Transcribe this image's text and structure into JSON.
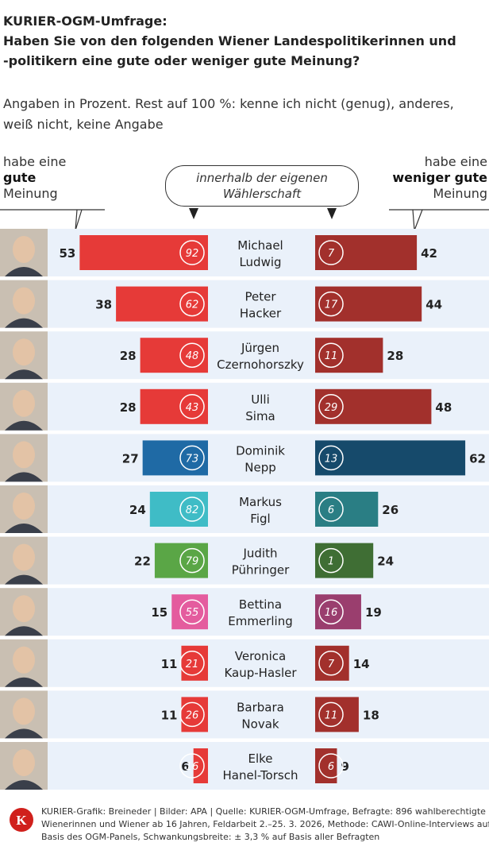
{
  "header": {
    "title_lines": [
      "KURIER-OGM-Umfrage:",
      "Haben Sie von den folgenden Wiener Landespolitikerinnen und",
      "-politikern eine gute oder weniger gute Meinung?"
    ],
    "subtitle_lines": [
      "Angaben in Prozent. Rest auf 100 %: kenne ich nicht (genug), anderes,",
      "weiß nicht, keine Angabe"
    ]
  },
  "legend": {
    "left": {
      "line1": "habe eine",
      "line2": "gute",
      "line3": "Meinung"
    },
    "right": {
      "line1": "habe eine",
      "line2": "weniger gute",
      "line3": "Meinung"
    },
    "bubble": {
      "line1": "innerhalb der eigenen",
      "line2": "Wählerschaft"
    }
  },
  "chart_data": {
    "type": "bar",
    "subtype": "diverging-horizontal",
    "title": "Haben Sie von den folgenden Wiener Landespolitikerinnen und -politikern eine gute oder weniger gute Meinung?",
    "unit": "%",
    "series": [
      {
        "name": "habe eine gute Meinung",
        "values": [
          53,
          38,
          28,
          28,
          27,
          24,
          22,
          15,
          11,
          11,
          6
        ]
      },
      {
        "name": "gute Meinung innerhalb der eigenen Wählerschaft",
        "values": [
          92,
          62,
          48,
          43,
          73,
          82,
          79,
          55,
          21,
          26,
          16
        ]
      },
      {
        "name": "innerhalb der eigenen Wählerschaft (weniger gute)",
        "values": [
          7,
          17,
          11,
          29,
          13,
          6,
          1,
          16,
          7,
          11,
          6
        ]
      },
      {
        "name": "habe eine weniger gute Meinung",
        "values": [
          42,
          44,
          28,
          48,
          62,
          26,
          24,
          19,
          14,
          18,
          9
        ]
      }
    ],
    "rows": [
      {
        "first": "Michael",
        "last": "Ludwig",
        "good": 53,
        "good_own": 92,
        "bad_own": 7,
        "bad": 42,
        "color_good": "#e63a38",
        "color_bad": "#a2302c"
      },
      {
        "first": "Peter",
        "last": "Hacker",
        "good": 38,
        "good_own": 62,
        "bad_own": 17,
        "bad": 44,
        "color_good": "#e63a38",
        "color_bad": "#a2302c"
      },
      {
        "first": "Jürgen",
        "last": "Czernohorszky",
        "good": 28,
        "good_own": 48,
        "bad_own": 11,
        "bad": 28,
        "color_good": "#e63a38",
        "color_bad": "#a2302c"
      },
      {
        "first": "Ulli",
        "last": "Sima",
        "good": 28,
        "good_own": 43,
        "bad_own": 29,
        "bad": 48,
        "color_good": "#e63a38",
        "color_bad": "#a2302c"
      },
      {
        "first": "Dominik",
        "last": "Nepp",
        "good": 27,
        "good_own": 73,
        "bad_own": 13,
        "bad": 62,
        "color_good": "#1f6aa5",
        "color_bad": "#164a6b"
      },
      {
        "first": "Markus",
        "last": "Figl",
        "good": 24,
        "good_own": 82,
        "bad_own": 6,
        "bad": 26,
        "color_good": "#3fbcc6",
        "color_bad": "#2a7e84"
      },
      {
        "first": "Judith",
        "last": "Pühringer",
        "good": 22,
        "good_own": 79,
        "bad_own": 1,
        "bad": 24,
        "color_good": "#5aa646",
        "color_bad": "#3f6e34"
      },
      {
        "first": "Bettina",
        "last": "Emmerling",
        "good": 15,
        "good_own": 55,
        "bad_own": 16,
        "bad": 19,
        "color_good": "#e45c9e",
        "color_bad": "#9a3e6e"
      },
      {
        "first": "Veronica",
        "last": "Kaup-Hasler",
        "good": 11,
        "good_own": 21,
        "bad_own": 7,
        "bad": 14,
        "color_good": "#e63a38",
        "color_bad": "#a2302c"
      },
      {
        "first": "Barbara",
        "last": "Novak",
        "good": 11,
        "good_own": 26,
        "bad_own": 11,
        "bad": 18,
        "color_good": "#e63a38",
        "color_bad": "#a2302c"
      },
      {
        "first": "Elke",
        "last": "Hanel-Torsch",
        "good": 6,
        "good_own": 16,
        "bad_own": 6,
        "bad": 9,
        "color_good": "#e63a38",
        "color_bad": "#a2302c"
      }
    ]
  },
  "footer": {
    "lines": [
      "KURIER-Grafik: Breineder | Bilder: APA | Quelle: KURIER-OGM-Umfrage, Befragte: 896 wahlberechtigte",
      "Wienerinnen und Wiener ab 16 Jahren, Feldarbeit 2.–25. 3. 2026, Methode: CAWI-Online-Interviews auf",
      "Basis des OGM-Panels, Schwankungsbreite: ± 3,3 % auf Basis aller Befragten"
    ],
    "logo_letter": "K",
    "logo_color": "#d0201c"
  },
  "colors": {
    "row_bg": "#eaf1fa",
    "face_bg": "#c9bfb2"
  }
}
